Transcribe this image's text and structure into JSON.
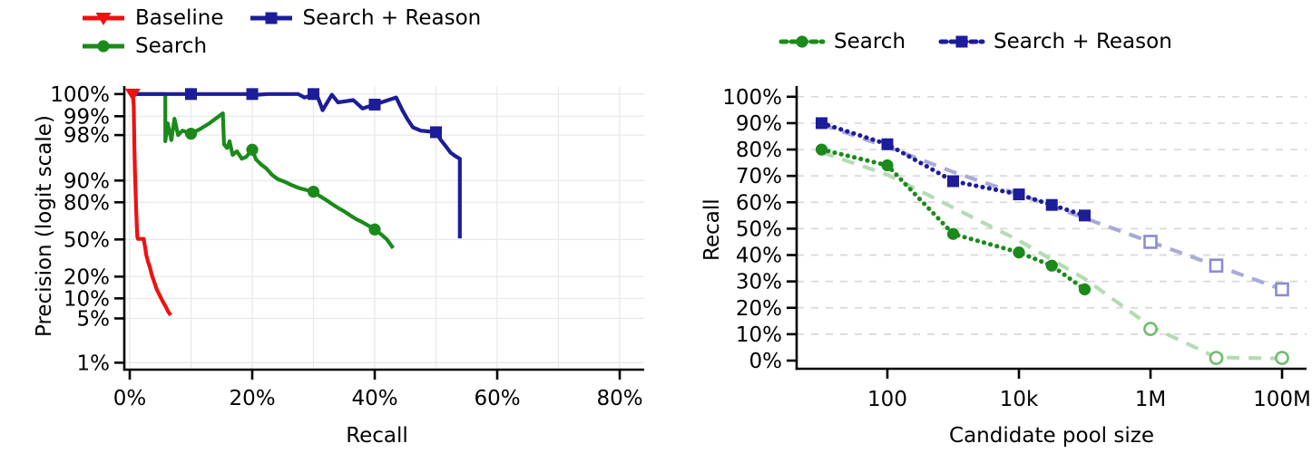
{
  "chart_data": [
    {
      "type": "line",
      "title": "",
      "xlabel": "Recall",
      "ylabel": "Precision (logit scale)",
      "x_axis": {
        "scale": "linear",
        "unit": "%",
        "range": [
          -1,
          84
        ],
        "ticks": [
          0,
          20,
          40,
          60,
          80
        ],
        "tick_labels": [
          "0%",
          "20%",
          "40%",
          "60%",
          "80%"
        ],
        "gridline_step": 10
      },
      "y_axis": {
        "scale": "logit",
        "unit": "%",
        "ticks": [
          100,
          99,
          98,
          90,
          80,
          50,
          20,
          10,
          5,
          1
        ],
        "tick_labels": [
          "100%",
          "99%",
          "98%",
          "90%",
          "80%",
          "50%",
          "20%",
          "10%",
          "5%",
          "1%"
        ]
      },
      "legend": {
        "position": "top-left",
        "items": [
          {
            "label": "Baseline",
            "series": 0
          },
          {
            "label": "Search + Reason",
            "series": 2
          },
          {
            "label": "Search",
            "series": 1
          }
        ]
      },
      "series": [
        {
          "name": "Baseline",
          "color": "#ee1111",
          "marker": "triangle-down",
          "marker_fill": "solid",
          "line_style": "solid",
          "points": [
            [
              0.5,
              100
            ],
            [
              0.65,
              99.3
            ],
            [
              0.75,
              97
            ],
            [
              0.85,
              93
            ],
            [
              0.95,
              86
            ],
            [
              1.05,
              75
            ],
            [
              1.15,
              62
            ],
            [
              1.25,
              52
            ],
            [
              1.35,
              50.5
            ],
            [
              2.3,
              50.5
            ],
            [
              2.4,
              46
            ],
            [
              2.5,
              43
            ],
            [
              2.7,
              36
            ],
            [
              3.0,
              30
            ],
            [
              3.3,
              26
            ],
            [
              3.6,
              21
            ],
            [
              4.0,
              17
            ],
            [
              4.4,
              13.5
            ],
            [
              4.9,
              11
            ],
            [
              5.4,
              9
            ],
            [
              5.9,
              7.5
            ],
            [
              6.3,
              6.3
            ],
            [
              6.7,
              5.6
            ]
          ],
          "marker_points": [
            [
              0.5,
              100
            ]
          ]
        },
        {
          "name": "Search",
          "color": "#1b8a1b",
          "marker": "circle",
          "marker_fill": "solid",
          "line_style": "solid",
          "points": [
            [
              0.6,
              100
            ],
            [
              5.8,
              100
            ],
            [
              5.8,
              97.5
            ],
            [
              6.2,
              98.7
            ],
            [
              6.8,
              97.6
            ],
            [
              7.3,
              98.9
            ],
            [
              7.9,
              98.0
            ],
            [
              8.6,
              98.3
            ],
            [
              10,
              98.1
            ],
            [
              11.5,
              98.4
            ],
            [
              13,
              98.7
            ],
            [
              15.2,
              99.1
            ],
            [
              15.4,
              97.2
            ],
            [
              15.9,
              96.8
            ],
            [
              16.3,
              97.5
            ],
            [
              16.8,
              95.9
            ],
            [
              17.5,
              96.4
            ],
            [
              18.3,
              95.3
            ],
            [
              19,
              95.6
            ],
            [
              20,
              96.6
            ],
            [
              20.6,
              95.2
            ],
            [
              21.4,
              94.3
            ],
            [
              22.3,
              93.4
            ],
            [
              23.2,
              91.8
            ],
            [
              24.2,
              90.4
            ],
            [
              25.3,
              89.6
            ],
            [
              26.4,
              88.4
            ],
            [
              27.6,
              87.2
            ],
            [
              28.8,
              86.4
            ],
            [
              30,
              85.6
            ],
            [
              31,
              83.5
            ],
            [
              32,
              81.5
            ],
            [
              33,
              79
            ],
            [
              34,
              76.5
            ],
            [
              35,
              74
            ],
            [
              36,
              71
            ],
            [
              37,
              68
            ],
            [
              38,
              65.5
            ],
            [
              39,
              62.5
            ],
            [
              40,
              59.2
            ],
            [
              41,
              55
            ],
            [
              42,
              50
            ],
            [
              43,
              42
            ]
          ],
          "marker_points": [
            [
              10,
              98.1
            ],
            [
              20,
              96.6
            ],
            [
              30,
              85.6
            ],
            [
              40,
              59.2
            ]
          ]
        },
        {
          "name": "Search + Reason",
          "color": "#1d1d99",
          "marker": "square",
          "marker_fill": "solid",
          "line_style": "solid",
          "points": [
            [
              0.6,
              100
            ],
            [
              8,
              100
            ],
            [
              18.5,
              100
            ],
            [
              19.5,
              99.85
            ],
            [
              20,
              99.9
            ],
            [
              21,
              99.55
            ],
            [
              22.5,
              99.9
            ],
            [
              27.5,
              99.85
            ],
            [
              28.5,
              99.5
            ],
            [
              30.5,
              99.65
            ],
            [
              31.5,
              99.2
            ],
            [
              33,
              99.55
            ],
            [
              34,
              99.4
            ],
            [
              36.5,
              99.45
            ],
            [
              38,
              99.25
            ],
            [
              40,
              99.35
            ],
            [
              43.5,
              99.5
            ],
            [
              44.5,
              99.2
            ],
            [
              45.3,
              98.9
            ],
            [
              46.2,
              98.5
            ],
            [
              47.5,
              98.3
            ],
            [
              50,
              98.2
            ],
            [
              50.8,
              97.6
            ],
            [
              51.6,
              97.0
            ],
            [
              52.4,
              96.2
            ],
            [
              53.2,
              95.7
            ],
            [
              53.9,
              95.3
            ],
            [
              53.9,
              51
            ]
          ],
          "marker_points": [
            [
              10,
              100
            ],
            [
              20,
              99.9
            ],
            [
              30,
              99.65
            ],
            [
              40,
              99.35
            ],
            [
              50,
              98.2
            ]
          ]
        }
      ]
    },
    {
      "type": "line",
      "title": "",
      "xlabel": "Candidate pool size",
      "ylabel": "Recall",
      "x_axis": {
        "scale": "log",
        "range": [
          4,
          230000000
        ],
        "ticks": [
          100,
          10000,
          1000000,
          100000000
        ],
        "tick_labels": [
          "100",
          "10k",
          "1M",
          "100M"
        ]
      },
      "y_axis": {
        "scale": "linear",
        "unit": "%",
        "range": [
          0,
          100
        ],
        "ticks": [
          100,
          90,
          80,
          70,
          60,
          50,
          40,
          30,
          20,
          10,
          0
        ],
        "tick_labels": [
          "100%",
          "90%",
          "80%",
          "70%",
          "60%",
          "50%",
          "40%",
          "30%",
          "20%",
          "10%",
          "0%"
        ],
        "gridlines": "dashed"
      },
      "legend": {
        "position": "top-center",
        "items": [
          {
            "label": "Search",
            "series": 2
          },
          {
            "label": "Search + Reason",
            "series": 3
          }
        ]
      },
      "series": [
        {
          "name": "Search (extrapolation)",
          "color": "#b4dcb4",
          "marker": "circle",
          "marker_fill": "open",
          "marker_color": "#6dbd6d",
          "line_style": "dashed",
          "line_points": [
            [
              10,
              79
            ],
            [
              100,
              70.5
            ],
            [
              1000,
              58
            ],
            [
              10000,
              45.5
            ],
            [
              100000,
              31
            ],
            [
              1000000,
              13
            ],
            [
              10000000,
              1.2
            ],
            [
              100000000,
              0.8
            ]
          ],
          "points": [
            [
              1000000,
              12
            ],
            [
              10000000,
              1
            ],
            [
              100000000,
              1
            ]
          ]
        },
        {
          "name": "Search + Reason (extrapolation)",
          "color": "#a9a9dc",
          "marker": "square",
          "marker_fill": "open",
          "marker_color": "#8b8bd0",
          "line_style": "dashed",
          "line_points": [
            [
              10,
              89.5
            ],
            [
              100,
              81
            ],
            [
              1000,
              71.5
            ],
            [
              10000,
              63
            ],
            [
              100000,
              54
            ],
            [
              1000000,
              45
            ],
            [
              10000000,
              36
            ],
            [
              100000000,
              27
            ]
          ],
          "points": [
            [
              1000000,
              45
            ],
            [
              10000000,
              36
            ],
            [
              100000000,
              27
            ]
          ]
        },
        {
          "name": "Search",
          "color": "#1b8a1b",
          "marker": "circle",
          "marker_fill": "solid",
          "line_style": "dotted",
          "points": [
            [
              10,
              80
            ],
            [
              100,
              74
            ],
            [
              1000,
              48
            ],
            [
              10000,
              41
            ],
            [
              31600,
              36
            ],
            [
              100000,
              27
            ]
          ]
        },
        {
          "name": "Search + Reason",
          "color": "#1d1d99",
          "marker": "square",
          "marker_fill": "solid",
          "line_style": "dotted",
          "points": [
            [
              10,
              90
            ],
            [
              100,
              82
            ],
            [
              1000,
              68
            ],
            [
              10000,
              63
            ],
            [
              31600,
              59
            ],
            [
              100000,
              55
            ]
          ]
        }
      ]
    }
  ]
}
